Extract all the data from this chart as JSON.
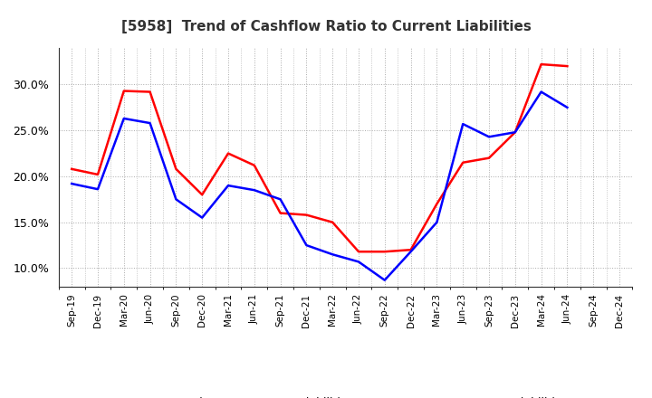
{
  "title": "[5958]  Trend of Cashflow Ratio to Current Liabilities",
  "x_labels": [
    "Sep-19",
    "Dec-19",
    "Mar-20",
    "Jun-20",
    "Sep-20",
    "Dec-20",
    "Mar-21",
    "Jun-21",
    "Sep-21",
    "Dec-21",
    "Mar-22",
    "Jun-22",
    "Sep-22",
    "Dec-22",
    "Mar-23",
    "Jun-23",
    "Sep-23",
    "Dec-23",
    "Mar-24",
    "Jun-24",
    "Sep-24",
    "Dec-24"
  ],
  "operating_cf": [
    20.8,
    20.2,
    29.3,
    29.2,
    20.8,
    18.0,
    22.5,
    21.2,
    16.0,
    15.8,
    15.0,
    11.8,
    11.8,
    12.0,
    17.0,
    21.5,
    22.0,
    24.8,
    32.2,
    32.0,
    null,
    null
  ],
  "free_cf": [
    19.2,
    18.6,
    26.3,
    25.8,
    17.5,
    15.5,
    19.0,
    18.5,
    17.5,
    12.5,
    11.5,
    10.7,
    8.7,
    11.8,
    15.0,
    25.7,
    24.3,
    24.8,
    29.2,
    27.5,
    null,
    null
  ],
  "operating_color": "#ff0000",
  "free_color": "#0000ff",
  "ylim": [
    8.0,
    34.0
  ],
  "yticks": [
    10.0,
    15.0,
    20.0,
    25.0,
    30.0
  ],
  "background_color": "#ffffff",
  "plot_bg_color": "#ffffff",
  "grid_color": "#aaaaaa",
  "legend_op_label": "Operating CF to Current Liabilities",
  "legend_free_label": "Free CF to Current Liabilities"
}
